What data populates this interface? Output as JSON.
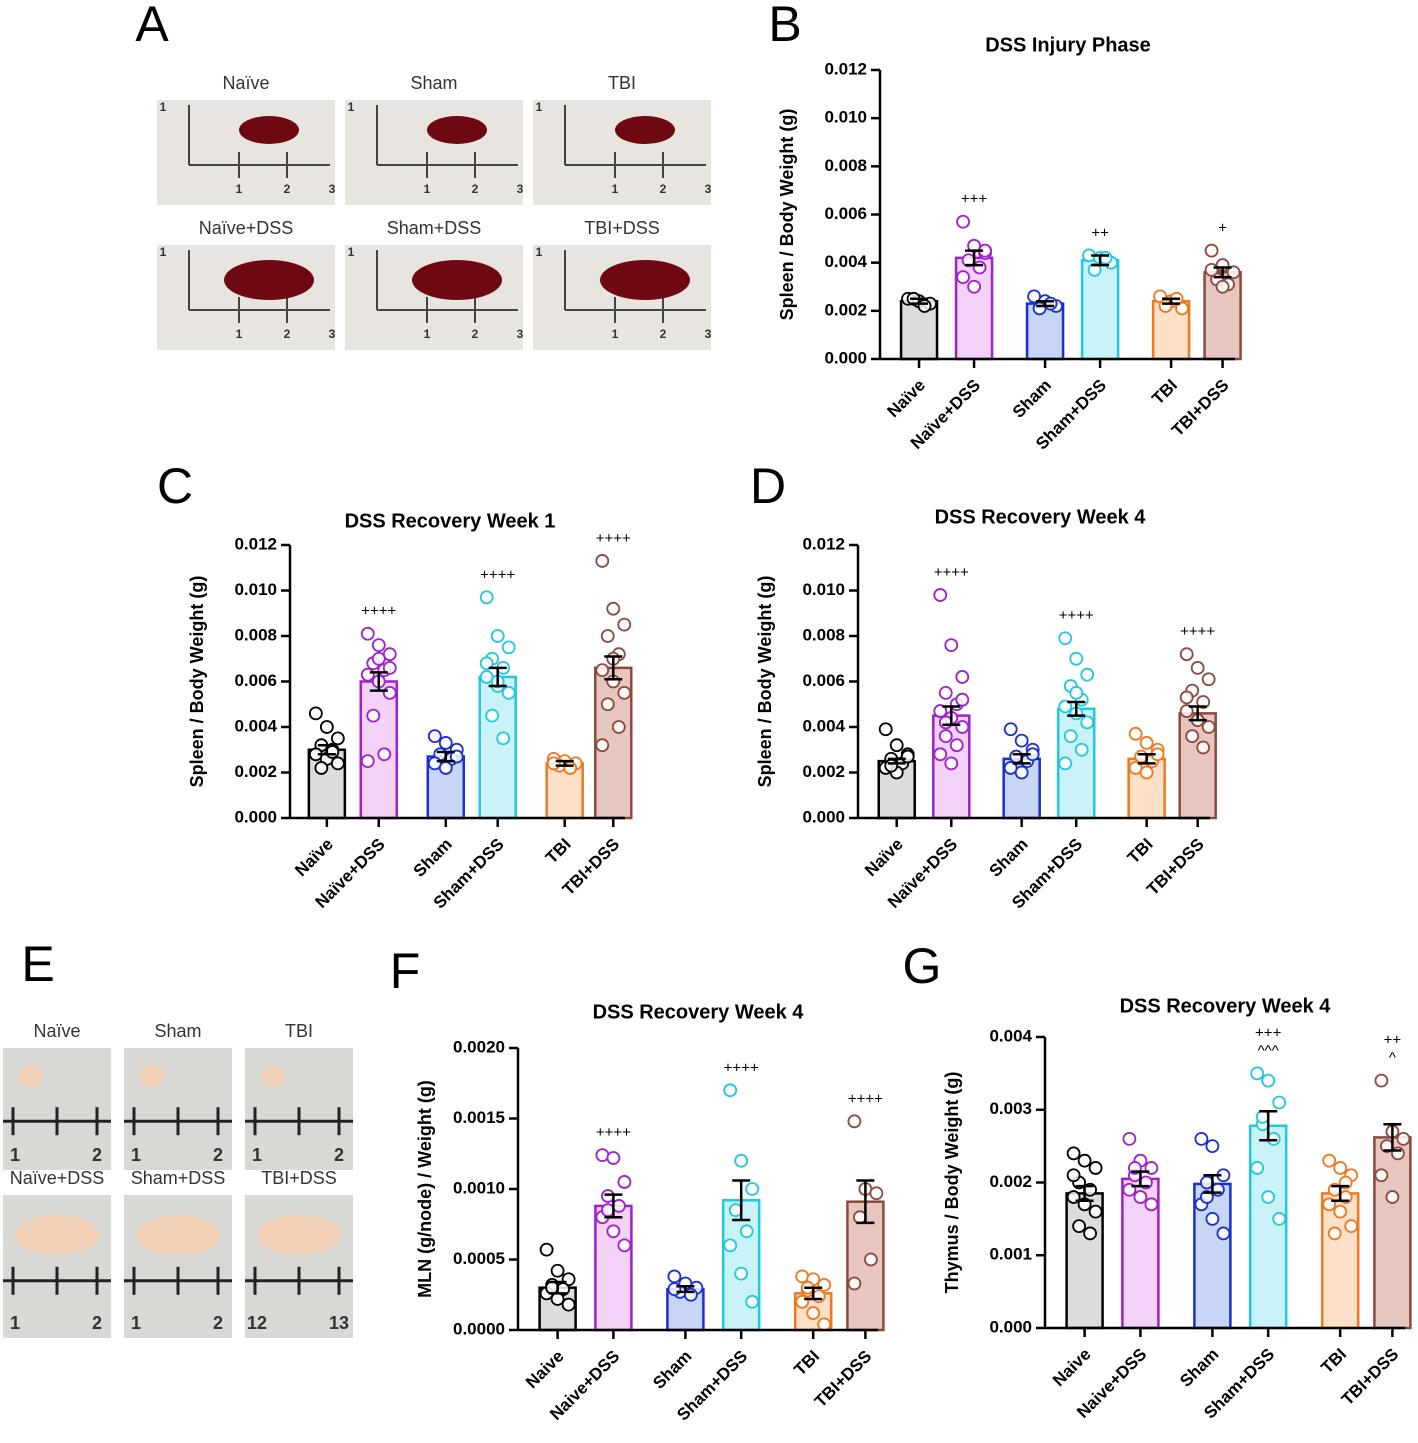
{
  "chart_data": [
    {
      "type": "bar",
      "letter": "B",
      "title": "DSS Injury Phase",
      "y_label": "Spleen / Body Weight (g)",
      "categories": [
        "Naïve",
        "Naïve+DSS",
        "Sham",
        "Sham+DSS",
        "TBI",
        "TBI+DSS"
      ],
      "values": [
        0.0024,
        0.0042,
        0.0023,
        0.0041,
        0.0024,
        0.0036
      ],
      "errors": [
        0.0001,
        0.0003,
        0.0001,
        0.0002,
        0.0001,
        0.0002
      ],
      "points": [
        [
          0.0025,
          0.0024,
          0.0023,
          0.0025,
          0.0022
        ],
        [
          0.0057,
          0.0047,
          0.0044,
          0.0041,
          0.0038,
          0.0034,
          0.003,
          0.0045
        ],
        [
          0.0026,
          0.0024,
          0.0022,
          0.0021,
          0.0023
        ],
        [
          0.0043,
          0.0042,
          0.004,
          0.0037,
          0.0042
        ],
        [
          0.0026,
          0.0024,
          0.0021,
          0.0022,
          0.0025
        ],
        [
          0.0045,
          0.0039,
          0.0036,
          0.0033,
          0.0031,
          0.0037,
          0.003
        ]
      ],
      "annotations": [
        null,
        [
          "+++"
        ],
        null,
        [
          "++"
        ],
        null,
        [
          "+"
        ]
      ],
      "colors": [
        "#000000",
        "#a020d0",
        "#1a2fd0",
        "#20c8e0",
        "#f07820",
        "#8b4a40"
      ],
      "fills": [
        "#dcdcdc",
        "#f2d2f7",
        "#c8d6f5",
        "#c9f3f8",
        "#fde0c8",
        "#e6c6bf"
      ],
      "ylim": [
        0,
        0.012
      ],
      "yticks": [
        {
          "value": 0,
          "label": "0.000"
        },
        {
          "value": 0.002,
          "label": "0.002"
        },
        {
          "value": 0.004,
          "label": "0.004"
        },
        {
          "value": 0.006,
          "label": "0.006"
        },
        {
          "value": 0.008,
          "label": "0.008"
        },
        {
          "value": 0.01,
          "label": "0.010"
        },
        {
          "value": 0.012,
          "label": "0.012"
        }
      ]
    },
    {
      "type": "bar",
      "letter": "C",
      "title": "DSS Recovery Week 1",
      "y_label": "Spleen / Body Weight (g)",
      "categories": [
        "Naïve",
        "Naïve+DSS",
        "Sham",
        "Sham+DSS",
        "TBI",
        "TBI+DSS"
      ],
      "values": [
        0.003,
        0.006,
        0.0027,
        0.0062,
        0.0024,
        0.0066
      ],
      "errors": [
        0.0002,
        0.0004,
        0.0002,
        0.0004,
        0.0001,
        0.0005
      ],
      "points": [
        [
          0.0046,
          0.004,
          0.0035,
          0.0032,
          0.003,
          0.0028,
          0.0026,
          0.0024,
          0.0022,
          0.0029
        ],
        [
          0.0081,
          0.0076,
          0.0072,
          0.0068,
          0.0065,
          0.0063,
          0.006,
          0.0055,
          0.0045,
          0.0028,
          0.0025,
          0.007,
          0.0066
        ],
        [
          0.0036,
          0.0033,
          0.003,
          0.0028,
          0.0026,
          0.0024,
          0.0022,
          0.0027
        ],
        [
          0.0097,
          0.008,
          0.0075,
          0.007,
          0.0066,
          0.0062,
          0.0058,
          0.0055,
          0.0045,
          0.0035,
          0.0068,
          0.006
        ],
        [
          0.0026,
          0.0025,
          0.0024,
          0.0023,
          0.0022,
          0.0024
        ],
        [
          0.0113,
          0.0092,
          0.0085,
          0.008,
          0.0072,
          0.0065,
          0.006,
          0.0055,
          0.005,
          0.004,
          0.0032,
          0.007
        ]
      ],
      "annotations": [
        null,
        [
          "++++"
        ],
        null,
        [
          "++++"
        ],
        null,
        [
          "++++"
        ]
      ],
      "colors": [
        "#000000",
        "#a020d0",
        "#1a2fd0",
        "#20c8e0",
        "#f07820",
        "#8b4a40"
      ],
      "fills": [
        "#dcdcdc",
        "#f2d2f7",
        "#c8d6f5",
        "#c9f3f8",
        "#fde0c8",
        "#e6c6bf"
      ],
      "ylim": [
        0,
        0.012
      ],
      "yticks": [
        {
          "value": 0,
          "label": "0.000"
        },
        {
          "value": 0.002,
          "label": "0.002"
        },
        {
          "value": 0.004,
          "label": "0.004"
        },
        {
          "value": 0.006,
          "label": "0.006"
        },
        {
          "value": 0.008,
          "label": "0.008"
        },
        {
          "value": 0.01,
          "label": "0.010"
        },
        {
          "value": 0.012,
          "label": "0.012"
        }
      ]
    },
    {
      "type": "bar",
      "letter": "D",
      "title": "DSS Recovery Week 4",
      "y_label": "Spleen / Body Weight (g)",
      "categories": [
        "Naïve",
        "Naïve+DSS",
        "Sham",
        "Sham+DSS",
        "TBI",
        "TBI+DSS"
      ],
      "values": [
        0.0025,
        0.0045,
        0.0026,
        0.0048,
        0.0026,
        0.0046
      ],
      "errors": [
        0.0001,
        0.0004,
        0.0002,
        0.0003,
        0.0002,
        0.0003
      ],
      "points": [
        [
          0.0039,
          0.0032,
          0.0028,
          0.0026,
          0.0024,
          0.0022,
          0.002,
          0.0027,
          0.0023
        ],
        [
          0.0098,
          0.0076,
          0.0062,
          0.0055,
          0.005,
          0.0047,
          0.0044,
          0.004,
          0.0036,
          0.0032,
          0.0028,
          0.0024,
          0.0052,
          0.0042
        ],
        [
          0.0039,
          0.0034,
          0.003,
          0.0027,
          0.0025,
          0.0022,
          0.002,
          0.0028
        ],
        [
          0.0079,
          0.007,
          0.0063,
          0.0058,
          0.0052,
          0.0049,
          0.0046,
          0.0042,
          0.0036,
          0.003,
          0.0024,
          0.0055
        ],
        [
          0.0037,
          0.0033,
          0.003,
          0.0027,
          0.0025,
          0.0022,
          0.002,
          0.0028
        ],
        [
          0.0072,
          0.0066,
          0.0061,
          0.0056,
          0.0051,
          0.0047,
          0.0043,
          0.004,
          0.0036,
          0.0031,
          0.0053
        ]
      ],
      "annotations": [
        null,
        [
          "++++"
        ],
        null,
        [
          "++++"
        ],
        null,
        [
          "++++"
        ]
      ],
      "colors": [
        "#000000",
        "#a020d0",
        "#1a2fd0",
        "#20c8e0",
        "#f07820",
        "#8b4a40"
      ],
      "fills": [
        "#dcdcdc",
        "#f2d2f7",
        "#c8d6f5",
        "#c9f3f8",
        "#fde0c8",
        "#e6c6bf"
      ],
      "ylim": [
        0,
        0.012
      ],
      "yticks": [
        {
          "value": 0,
          "label": "0.000"
        },
        {
          "value": 0.002,
          "label": "0.002"
        },
        {
          "value": 0.004,
          "label": "0.004"
        },
        {
          "value": 0.006,
          "label": "0.006"
        },
        {
          "value": 0.008,
          "label": "0.008"
        },
        {
          "value": 0.01,
          "label": "0.010"
        },
        {
          "value": 0.012,
          "label": "0.012"
        }
      ]
    },
    {
      "type": "bar",
      "letter": "F",
      "title": "DSS Recovery Week 4",
      "y_label": "MLN (g/node) / Weight (g)",
      "categories": [
        "Naive",
        "Naive+DSS",
        "Sham",
        "Sham+DSS",
        "TBI",
        "TBI+DSS"
      ],
      "values": [
        0.0003,
        0.00088,
        0.00029,
        0.00092,
        0.00026,
        0.00091
      ],
      "errors": [
        4e-05,
        8e-05,
        2e-05,
        0.00014,
        4e-05,
        0.00015
      ],
      "points": [
        [
          0.00057,
          0.00042,
          0.00036,
          0.00032,
          0.00029,
          0.00026,
          0.00022,
          0.00018,
          0.0003
        ],
        [
          0.00124,
          0.00122,
          0.00105,
          0.00095,
          0.00088,
          0.0008,
          0.0007,
          0.0006,
          0.00085
        ],
        [
          0.00038,
          0.00033,
          0.0003,
          0.00027,
          0.00025,
          0.00029
        ],
        [
          0.0017,
          0.0012,
          0.001,
          0.00085,
          0.0007,
          0.0006,
          0.0004,
          0.0002
        ],
        [
          0.00038,
          0.00036,
          0.00032,
          0.00028,
          0.00024,
          0.0002,
          0.00012,
          4e-05,
          0.0003
        ],
        [
          0.00148,
          0.001,
          0.00097,
          0.0008,
          0.0005,
          0.00033
        ]
      ],
      "annotations": [
        null,
        [
          "++++"
        ],
        null,
        [
          "++++"
        ],
        null,
        [
          "++++"
        ]
      ],
      "colors": [
        "#000000",
        "#a020d0",
        "#1a2fd0",
        "#20c8e0",
        "#f07820",
        "#8b4a40"
      ],
      "fills": [
        "#dcdcdc",
        "#f2d2f7",
        "#c8d6f5",
        "#c9f3f8",
        "#fde0c8",
        "#e6c6bf"
      ],
      "ylim": [
        0,
        0.002
      ],
      "yticks": [
        {
          "value": 0,
          "label": "0.0000"
        },
        {
          "value": 0.0005,
          "label": "0.0005"
        },
        {
          "value": 0.001,
          "label": "0.0010"
        },
        {
          "value": 0.0015,
          "label": "0.0015"
        },
        {
          "value": 0.002,
          "label": "0.0020"
        }
      ]
    },
    {
      "type": "bar",
      "letter": "G",
      "title": "DSS Recovery Week 4",
      "y_label": "Thymus / Body Weight (g)",
      "categories": [
        "Naive",
        "Naive+DSS",
        "Sham",
        "Sham+DSS",
        "TBI",
        "TBI+DSS"
      ],
      "values": [
        0.00185,
        0.00205,
        0.00198,
        0.00278,
        0.00185,
        0.00262
      ],
      "errors": [
        0.0001,
        0.0001,
        0.00012,
        0.0002,
        0.0001,
        0.00018
      ],
      "points": [
        [
          0.0024,
          0.0023,
          0.0022,
          0.002,
          0.0019,
          0.0018,
          0.0017,
          0.0016,
          0.0014,
          0.0013,
          0.0021
        ],
        [
          0.0026,
          0.0023,
          0.0022,
          0.0021,
          0.002,
          0.0019,
          0.0018,
          0.0017,
          0.0022
        ],
        [
          0.0026,
          0.0025,
          0.0021,
          0.002,
          0.0019,
          0.0017,
          0.0015,
          0.0013,
          0.0018
        ],
        [
          0.0035,
          0.0034,
          0.0031,
          0.0028,
          0.0026,
          0.0022,
          0.0018,
          0.0015,
          0.0029
        ],
        [
          0.0023,
          0.0022,
          0.0021,
          0.0019,
          0.0018,
          0.0017,
          0.0016,
          0.0014,
          0.0013,
          0.002
        ],
        [
          0.0034,
          0.0027,
          0.0026,
          0.0025,
          0.0024,
          0.0021,
          0.0018
        ]
      ],
      "annotations": [
        null,
        null,
        null,
        [
          "+++",
          "^^^"
        ],
        null,
        [
          "++",
          "^"
        ]
      ],
      "colors": [
        "#000000",
        "#a020d0",
        "#1a2fd0",
        "#20c8e0",
        "#f07820",
        "#8b4a40"
      ],
      "fills": [
        "#dcdcdc",
        "#f2d2f7",
        "#c8d6f5",
        "#c9f3f8",
        "#fde0c8",
        "#e6c6bf"
      ],
      "ylim": [
        0,
        0.004
      ],
      "yticks": [
        {
          "value": 0,
          "label": "0.000"
        },
        {
          "value": 0.001,
          "label": "0.001"
        },
        {
          "value": 0.002,
          "label": "0.002"
        },
        {
          "value": 0.003,
          "label": "0.003"
        },
        {
          "value": 0.004,
          "label": "0.004"
        }
      ]
    }
  ],
  "photo_panels": [
    {
      "letter": "A",
      "photos": [
        {
          "label": "Naïve",
          "ruler": [
            "1",
            "1",
            "2",
            "3"
          ]
        },
        {
          "label": "Sham",
          "ruler": [
            "1",
            "1",
            "2",
            "3"
          ]
        },
        {
          "label": "TBI",
          "ruler": [
            "1",
            "1",
            "2",
            "3"
          ]
        },
        {
          "label": "Naïve+DSS",
          "ruler": [
            "1",
            "1",
            "2",
            "3"
          ]
        },
        {
          "label": "Sham+DSS",
          "ruler": [
            "1",
            "1",
            "2",
            "3"
          ]
        },
        {
          "label": "TBI+DSS",
          "ruler": [
            "1",
            "1",
            "2",
            "3"
          ]
        }
      ]
    },
    {
      "letter": "E",
      "photos": [
        {
          "label": "Naïve",
          "ruler": [
            "1",
            "2"
          ]
        },
        {
          "label": "Sham",
          "ruler": [
            "1",
            "2"
          ]
        },
        {
          "label": "TBI",
          "ruler": [
            "1",
            "2"
          ]
        },
        {
          "label": "Naïve+DSS",
          "ruler": [
            "1",
            "2"
          ]
        },
        {
          "label": "Sham+DSS",
          "ruler": [
            "1",
            "2"
          ]
        },
        {
          "label": "TBI+DSS",
          "ruler": [
            "12",
            "13"
          ]
        }
      ]
    }
  ]
}
